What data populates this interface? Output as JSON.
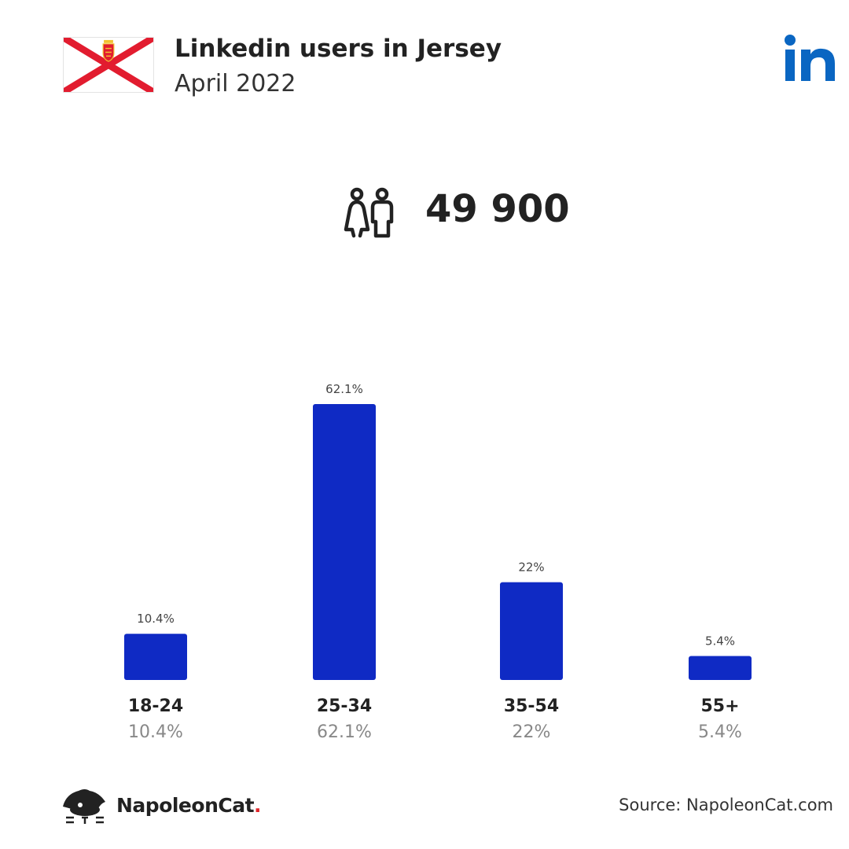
{
  "header": {
    "title": "Linkedin users in Jersey",
    "subtitle": "April 2022"
  },
  "total": {
    "value": "49 900",
    "icon": "users-icon"
  },
  "colors": {
    "bar": "#0f2ac4",
    "flag_cross": "#e21c2f",
    "linkedin_blue": "#0a66c2",
    "brand_dot": "#e0252a"
  },
  "chart_data": {
    "type": "bar",
    "categories": [
      "18-24",
      "25-34",
      "35-54",
      "55+"
    ],
    "values": [
      10.4,
      62.1,
      22,
      5.4
    ],
    "value_labels": [
      "10.4%",
      "62.1%",
      "22%",
      "5.4%"
    ],
    "ylim": [
      0,
      62.1
    ],
    "grid": false,
    "legend": "none"
  },
  "footer": {
    "brand_name": "NapoleonCat",
    "brand_dot": ".",
    "source": "Source: NapoleonCat.com"
  }
}
